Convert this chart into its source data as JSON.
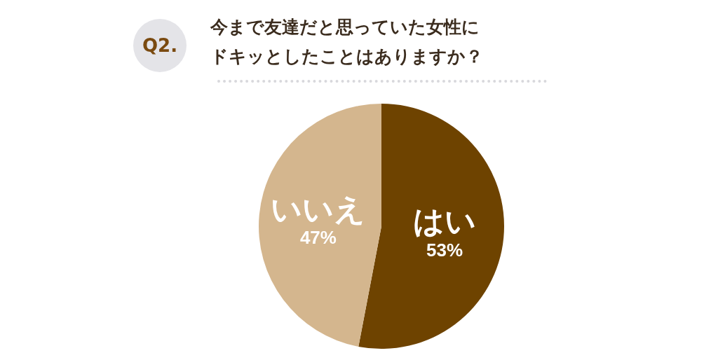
{
  "chart_data": {
    "type": "pie",
    "title": "今まで友達だと思っていた女性に",
    "subtitle": "ドキッとしたことはありますか？",
    "annotations": [
      "Q2."
    ],
    "categories": [
      "はい",
      "いいえ"
    ],
    "values": [
      53,
      47
    ],
    "colors": [
      "#6e4300",
      "#d4b68e"
    ],
    "value_labels": [
      "53%",
      "47%"
    ]
  }
}
